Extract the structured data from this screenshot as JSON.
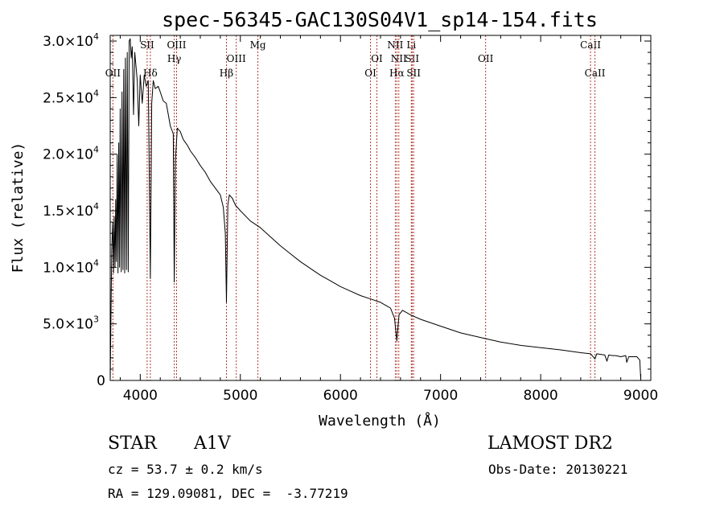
{
  "chart_data": {
    "type": "line",
    "title": "spec-56345-GAC130S04V1_sp14-154.fits",
    "xlabel": "Wavelength (Å)",
    "ylabel": "Flux (relative)",
    "xlim": [
      3700,
      9100
    ],
    "ylim": [
      0,
      30500
    ],
    "x_ticks": [
      4000,
      5000,
      6000,
      7000,
      8000,
      9000
    ],
    "y_ticks": [
      {
        "value": 0,
        "mantissa": "0",
        "exp": ""
      },
      {
        "value": 5000,
        "mantissa": "5.0×10",
        "exp": "3"
      },
      {
        "value": 10000,
        "mantissa": "1.0×10",
        "exp": "4"
      },
      {
        "value": 15000,
        "mantissa": "1.5×10",
        "exp": "4"
      },
      {
        "value": 20000,
        "mantissa": "2.0×10",
        "exp": "4"
      },
      {
        "value": 25000,
        "mantissa": "2.5×10",
        "exp": "4"
      },
      {
        "value": 30000,
        "mantissa": "3.0×10",
        "exp": "4"
      }
    ],
    "grid": false,
    "series": [
      {
        "x": [
          3700,
          3715,
          3725,
          3733,
          3740,
          3748,
          3755,
          3762,
          3770,
          3778,
          3785,
          3793,
          3800,
          3810,
          3818,
          3828,
          3835,
          3845,
          3852,
          3862,
          3870,
          3880,
          3890,
          3900,
          3910,
          3920,
          3933,
          3945,
          3960,
          3970,
          3985,
          4000,
          4020,
          4040,
          4060,
          4080,
          4101,
          4115,
          4130,
          4150,
          4180,
          4200,
          4230,
          4260,
          4300,
          4330,
          4340,
          4352,
          4370,
          4400,
          4430,
          4470,
          4500,
          4550,
          4600,
          4650,
          4700,
          4750,
          4800,
          4830,
          4850,
          4861,
          4875,
          4890,
          4920,
          4950,
          5000,
          5100,
          5200,
          5300,
          5400,
          5500,
          5600,
          5700,
          5800,
          5900,
          6000,
          6100,
          6200,
          6300,
          6400,
          6500,
          6540,
          6563,
          6585,
          6620,
          6700,
          6800,
          7000,
          7200,
          7400,
          7600,
          7800,
          8000,
          8200,
          8400,
          8500,
          8542,
          8560,
          8600,
          8640,
          8662,
          8680,
          8720,
          8750,
          8800,
          8850,
          8860,
          8880,
          8920,
          8960,
          8990,
          9000
        ],
        "y": [
          0,
          11500,
          14000,
          9500,
          14500,
          10000,
          16000,
          10500,
          20000,
          9500,
          21000,
          10000,
          24000,
          9600,
          25500,
          9800,
          27500,
          9500,
          28500,
          9800,
          29000,
          9600,
          30000,
          30200,
          28500,
          29500,
          23500,
          29000,
          27500,
          26500,
          22500,
          27000,
          24500,
          27000,
          26000,
          26500,
          9000,
          24500,
          26500,
          25800,
          26000,
          25500,
          24700,
          24500,
          22500,
          21800,
          8700,
          19500,
          22300,
          22000,
          21300,
          20800,
          20300,
          19700,
          19000,
          18400,
          17600,
          17000,
          16400,
          15300,
          13000,
          6900,
          15500,
          16400,
          16100,
          15500,
          15000,
          14100,
          13500,
          12700,
          11900,
          11200,
          10500,
          9900,
          9300,
          8800,
          8300,
          7900,
          7500,
          7200,
          6900,
          6400,
          5500,
          3500,
          5800,
          6200,
          5800,
          5400,
          4800,
          4200,
          3800,
          3400,
          3100,
          2900,
          2700,
          2450,
          2350,
          1900,
          2350,
          2300,
          2250,
          1700,
          2250,
          2200,
          2200,
          2100,
          2200,
          1600,
          2100,
          2100,
          2100,
          1800,
          0
        ]
      }
    ],
    "lines": [
      {
        "wave": 3727,
        "label": "OII",
        "row": 2
      },
      {
        "wave": 4069,
        "label": "SII",
        "row": 0
      },
      {
        "wave": 4101,
        "label": "Hδ",
        "row": 2
      },
      {
        "wave": 4340,
        "label": "Hγ",
        "row": 1
      },
      {
        "wave": 4363,
        "label": "OIII",
        "row": 0
      },
      {
        "wave": 4861,
        "label": "Hβ",
        "row": 2
      },
      {
        "wave": 4959,
        "label": "OIII",
        "row": 1
      },
      {
        "wave": 5175,
        "label": "Mg",
        "row": 0
      },
      {
        "wave": 6300,
        "label": "OI",
        "row": 2
      },
      {
        "wave": 6364,
        "label": "OI",
        "row": 1
      },
      {
        "wave": 6548,
        "label": "NII",
        "row": 0
      },
      {
        "wave": 6563,
        "label": "Hα",
        "row": 2
      },
      {
        "wave": 6583,
        "label": "NII",
        "row": 1
      },
      {
        "wave": 6708,
        "label": "Li",
        "row": 0
      },
      {
        "wave": 6716,
        "label": "SII",
        "row": 1
      },
      {
        "wave": 6731,
        "label": "SII",
        "row": 2
      },
      {
        "wave": 7450,
        "label": "OII",
        "row": 1
      },
      {
        "wave": 8498,
        "label": "CaII",
        "row": 0
      },
      {
        "wave": 8542,
        "label": "CaII",
        "row": 2
      }
    ]
  },
  "info": {
    "class": "STAR",
    "subclass": "A1V",
    "survey": "LAMOST DR2",
    "cz": "cz = 53.7 ± 0.2 km/s",
    "obs_date": "Obs-Date: 20130221",
    "coords": "RA = 129.09081, DEC =  -3.77219"
  }
}
